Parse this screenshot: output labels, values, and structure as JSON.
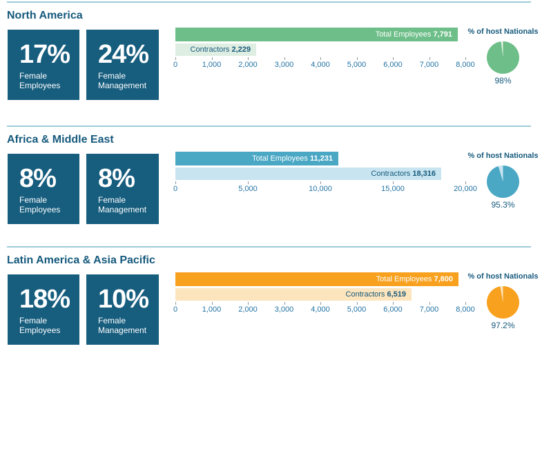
{
  "colors": {
    "background": "#FFFFFF",
    "title": "#15597C",
    "card_bg": "#165D7E",
    "card_text": "#FFFFFF",
    "divider": "#9CCBD8",
    "axis_label": "#2273A3",
    "tick": "#8A979E"
  },
  "chart_data": [
    {
      "region": "North America",
      "stat_cards": [
        {
          "value": "17%",
          "line1": "Female",
          "line2": "Employees"
        },
        {
          "value": "24%",
          "line1": "Female",
          "line2": "Management"
        }
      ],
      "bar_chart": {
        "type": "bar",
        "xlim": [
          0,
          8000
        ],
        "tick_labels": [
          "0",
          "1,000",
          "2,000",
          "3,000",
          "4,000",
          "5,000",
          "6,000",
          "7,000",
          "8,000"
        ],
        "bars": [
          {
            "name": "Total Employees",
            "value": 7791,
            "value_label": "7,791",
            "color": "#6DBE88",
            "text_color": "#FFFFFF"
          },
          {
            "name": "Contractors",
            "value": 2229,
            "value_label": "2,229",
            "color": "#DFEEE2",
            "text_color": "#15597C"
          }
        ]
      },
      "pie_chart": {
        "type": "pie",
        "title": "% of host Nationals",
        "pct": 98,
        "pct_label": "98%",
        "color": "#6DBE88",
        "remainder_color": "#E6F2E8"
      }
    },
    {
      "region": "Africa & Middle East",
      "stat_cards": [
        {
          "value": "8%",
          "line1": "Female",
          "line2": "Employees"
        },
        {
          "value": "8%",
          "line1": "Female",
          "line2": "Management"
        }
      ],
      "bar_chart": {
        "type": "bar",
        "xlim": [
          0,
          20000
        ],
        "tick_labels": [
          "0",
          "5,000",
          "10,000",
          "15,000",
          "20,000"
        ],
        "bars": [
          {
            "name": "Total Employees",
            "value": 11231,
            "value_label": "11,231",
            "color": "#4BA8C5",
            "text_color": "#FFFFFF"
          },
          {
            "name": "Contractors",
            "value": 18316,
            "value_label": "18,316",
            "color": "#C7E4F0",
            "text_color": "#15597C"
          }
        ]
      },
      "pie_chart": {
        "type": "pie",
        "title": "% of host Nationals",
        "pct": 95.3,
        "pct_label": "95.3%",
        "color": "#4BA8C5",
        "remainder_color": "#C7E4F0"
      }
    },
    {
      "region": "Latin America & Asia Pacific",
      "stat_cards": [
        {
          "value": "18%",
          "line1": "Female",
          "line2": "Employees"
        },
        {
          "value": "10%",
          "line1": "Female",
          "line2": "Management"
        }
      ],
      "bar_chart": {
        "type": "bar",
        "xlim": [
          0,
          8000
        ],
        "tick_labels": [
          "0",
          "1,000",
          "2,000",
          "3,000",
          "4,000",
          "5,000",
          "6,000",
          "7,000",
          "8,000"
        ],
        "bars": [
          {
            "name": "Total Employees",
            "value": 7800,
            "value_label": "7,800",
            "color": "#F7A11E",
            "text_color": "#FFFFFF"
          },
          {
            "name": "Contractors",
            "value": 6519,
            "value_label": "6,519",
            "color": "#FCE4BC",
            "text_color": "#15597C"
          }
        ]
      },
      "pie_chart": {
        "type": "pie",
        "title": "% of host Nationals",
        "pct": 97.2,
        "pct_label": "97.2%",
        "color": "#F7A11E",
        "remainder_color": "#FCE4BC"
      }
    }
  ]
}
